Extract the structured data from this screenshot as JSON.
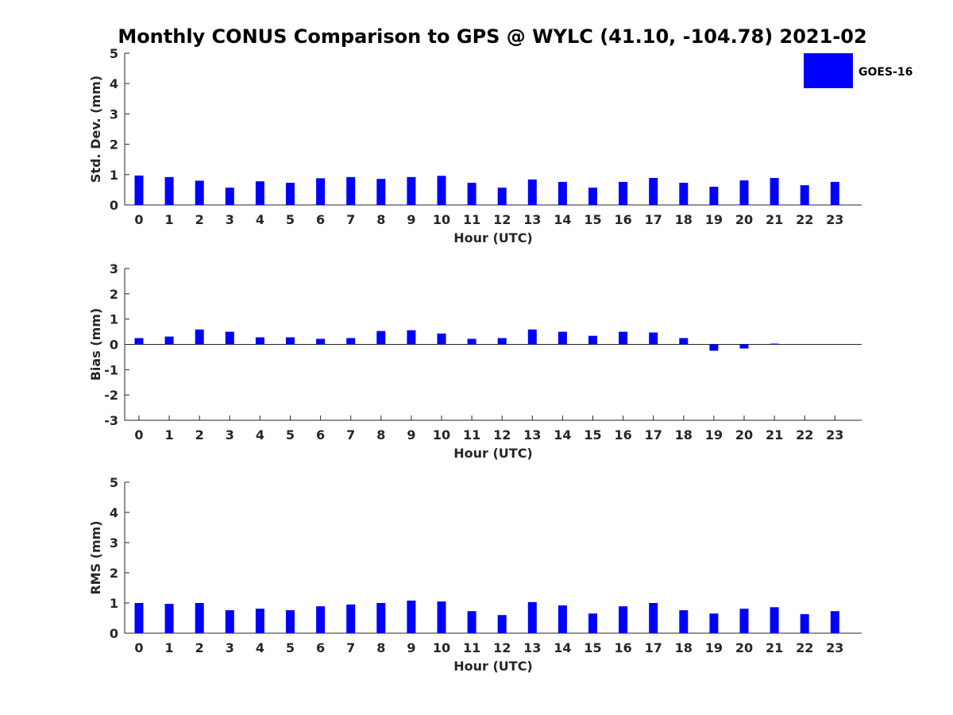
{
  "title": "Monthly CONUS Comparison to GPS @ WYLC (41.10, -104.78) 2021-02",
  "legend": {
    "label": "GOES-16",
    "color": "#0000ff",
    "placement": "top-right"
  },
  "chart_data": [
    {
      "type": "bar",
      "title": "",
      "xlabel": "Hour (UTC)",
      "ylabel": "Std. Dev. (mm)",
      "ylim": [
        0,
        5
      ],
      "yticks": [
        0,
        1,
        2,
        3,
        4,
        5
      ],
      "categories": [
        "0",
        "1",
        "2",
        "3",
        "4",
        "5",
        "6",
        "7",
        "8",
        "9",
        "10",
        "11",
        "12",
        "13",
        "14",
        "15",
        "16",
        "17",
        "18",
        "19",
        "20",
        "21",
        "22",
        "23"
      ],
      "series": [
        {
          "name": "GOES-16",
          "color": "#0000ff",
          "values": [
            0.97,
            0.92,
            0.8,
            0.57,
            0.78,
            0.73,
            0.88,
            0.92,
            0.86,
            0.92,
            0.96,
            0.73,
            0.57,
            0.84,
            0.76,
            0.57,
            0.76,
            0.89,
            0.73,
            0.6,
            0.81,
            0.89,
            0.65,
            0.76
          ]
        }
      ]
    },
    {
      "type": "bar",
      "title": "",
      "xlabel": "Hour (UTC)",
      "ylabel": "Bias (mm)",
      "ylim": [
        -3,
        3
      ],
      "yticks": [
        -3,
        -2,
        -1,
        0,
        1,
        2,
        3
      ],
      "categories": [
        "0",
        "1",
        "2",
        "3",
        "4",
        "5",
        "6",
        "7",
        "8",
        "9",
        "10",
        "11",
        "12",
        "13",
        "14",
        "15",
        "16",
        "17",
        "18",
        "19",
        "20",
        "21",
        "22",
        "23"
      ],
      "series": [
        {
          "name": "GOES-16",
          "color": "#0000ff",
          "values": [
            0.25,
            0.31,
            0.59,
            0.5,
            0.28,
            0.28,
            0.22,
            0.25,
            0.53,
            0.56,
            0.43,
            0.22,
            0.25,
            0.59,
            0.5,
            0.34,
            0.5,
            0.47,
            0.25,
            -0.25,
            -0.16,
            0.03,
            0,
            0
          ]
        }
      ]
    },
    {
      "type": "bar",
      "title": "",
      "xlabel": "Hour (UTC)",
      "ylabel": "RMS (mm)",
      "ylim": [
        0,
        5
      ],
      "yticks": [
        0,
        1,
        2,
        3,
        4,
        5
      ],
      "categories": [
        "0",
        "1",
        "2",
        "3",
        "4",
        "5",
        "6",
        "7",
        "8",
        "9",
        "10",
        "11",
        "12",
        "13",
        "14",
        "15",
        "16",
        "17",
        "18",
        "19",
        "20",
        "21",
        "22",
        "23"
      ],
      "series": [
        {
          "name": "GOES-16",
          "color": "#0000ff",
          "values": [
            1.0,
            0.97,
            1.0,
            0.76,
            0.81,
            0.76,
            0.89,
            0.95,
            1.0,
            1.08,
            1.05,
            0.73,
            0.6,
            1.03,
            0.92,
            0.65,
            0.89,
            1.0,
            0.76,
            0.65,
            0.81,
            0.86,
            0.63,
            0.73
          ]
        }
      ]
    }
  ]
}
